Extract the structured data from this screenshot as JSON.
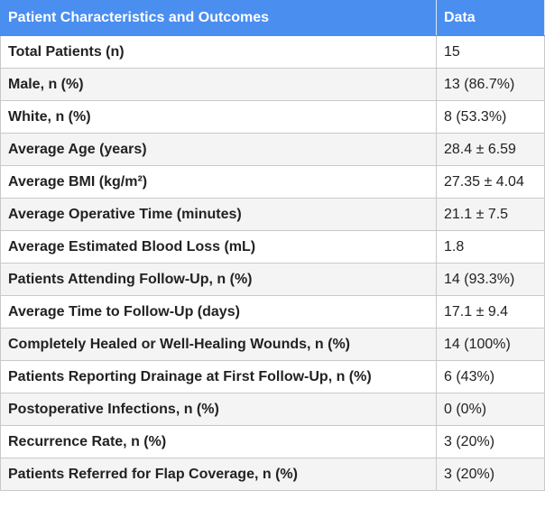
{
  "table": {
    "headers": [
      "Patient Characteristics and Outcomes",
      "Data"
    ],
    "rows": [
      {
        "label": "Total Patients (n)",
        "value": "15"
      },
      {
        "label": "Male, n (%)",
        "value": "13 (86.7%)"
      },
      {
        "label": "White, n (%)",
        "value": "8 (53.3%)"
      },
      {
        "label": "Average Age (years)",
        "value": "28.4 ± 6.59"
      },
      {
        "label": "Average BMI (kg/m²)",
        "value": "27.35 ± 4.04"
      },
      {
        "label": "Average Operative Time (minutes)",
        "value": "21.1 ± 7.5"
      },
      {
        "label": "Average Estimated Blood Loss (mL)",
        "value": "1.8"
      },
      {
        "label": "Patients Attending Follow-Up, n (%)",
        "value": "14 (93.3%)"
      },
      {
        "label": "Average Time to Follow-Up (days)",
        "value": "17.1 ± 9.4"
      },
      {
        "label": "Completely Healed or Well-Healing Wounds, n (%)",
        "value": "14 (100%)"
      },
      {
        "label": "Patients Reporting Drainage at First Follow-Up, n (%)",
        "value": "6 (43%)"
      },
      {
        "label": "Postoperative Infections, n (%)",
        "value": "0 (0%)"
      },
      {
        "label": "Recurrence Rate, n (%)",
        "value": "3 (20%)"
      },
      {
        "label": "Patients Referred for Flap Coverage, n (%)",
        "value": "3 (20%)"
      }
    ]
  },
  "colors": {
    "header_bg": "#4a8ef0",
    "header_text": "#ffffff",
    "row_alt_bg": "#f4f4f4",
    "border": "#c9c9c9"
  }
}
